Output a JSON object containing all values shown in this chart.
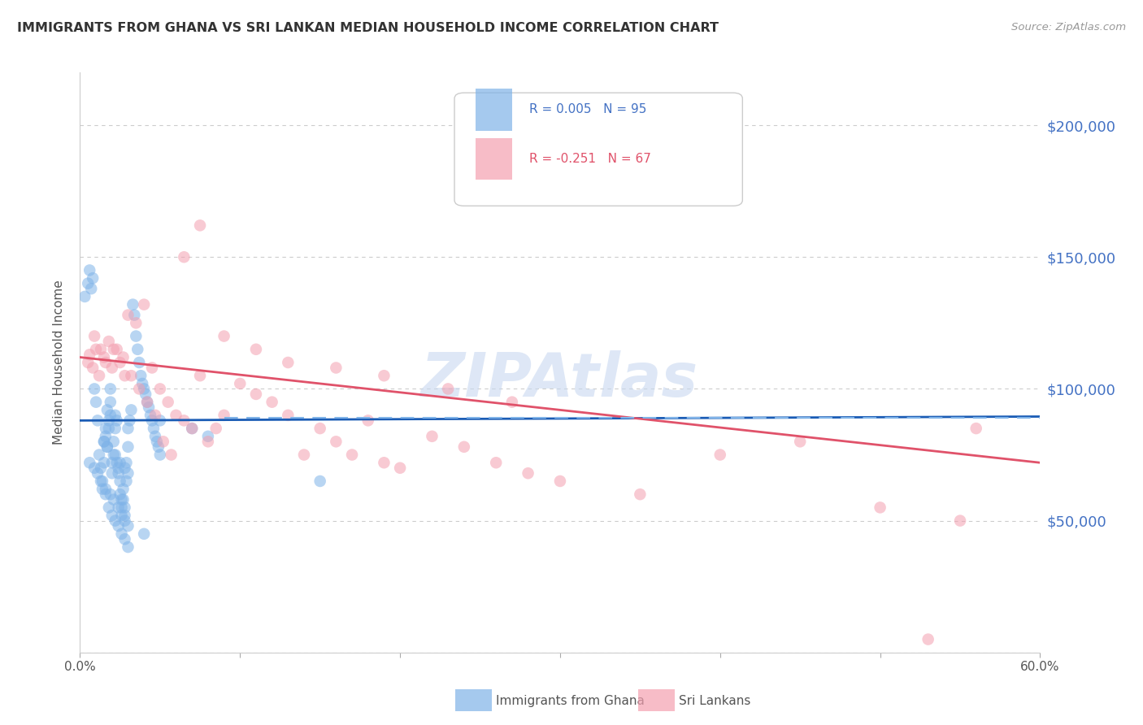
{
  "title": "IMMIGRANTS FROM GHANA VS SRI LANKAN MEDIAN HOUSEHOLD INCOME CORRELATION CHART",
  "source": "Source: ZipAtlas.com",
  "ylabel": "Median Household Income",
  "yticks": [
    0,
    50000,
    100000,
    150000,
    200000
  ],
  "ytick_labels": [
    "",
    "$50,000",
    "$100,000",
    "$150,000",
    "$200,000"
  ],
  "xlim": [
    0.0,
    0.6
  ],
  "ylim": [
    0,
    220000
  ],
  "ghana_R": 0.005,
  "ghana_N": 95,
  "srilanka_R": -0.251,
  "srilanka_N": 67,
  "ghana_color": "#7fb3e8",
  "srilanka_color": "#f4a0b0",
  "ghana_line_color": "#1a5cb5",
  "srilanka_line_color": "#e0526a",
  "ghana_dashed_color": "#7fb3e8",
  "legend_ghana_label": "Immigrants from Ghana",
  "legend_srilanka_label": "Sri Lankans",
  "watermark": "ZIPAtlas",
  "watermark_color": "#c8d8f0",
  "background_color": "#ffffff",
  "grid_color": "#cccccc",
  "title_color": "#333333",
  "ytick_label_color": "#4472c4",
  "source_color": "#999999",
  "ghana_x": [
    0.003,
    0.005,
    0.006,
    0.007,
    0.008,
    0.009,
    0.01,
    0.011,
    0.012,
    0.013,
    0.014,
    0.015,
    0.015,
    0.016,
    0.016,
    0.017,
    0.017,
    0.018,
    0.018,
    0.019,
    0.019,
    0.02,
    0.02,
    0.021,
    0.021,
    0.022,
    0.022,
    0.023,
    0.023,
    0.024,
    0.024,
    0.025,
    0.025,
    0.026,
    0.026,
    0.027,
    0.027,
    0.028,
    0.028,
    0.029,
    0.029,
    0.03,
    0.03,
    0.031,
    0.032,
    0.033,
    0.034,
    0.035,
    0.036,
    0.037,
    0.038,
    0.039,
    0.04,
    0.041,
    0.042,
    0.043,
    0.044,
    0.045,
    0.046,
    0.047,
    0.048,
    0.049,
    0.05,
    0.006,
    0.009,
    0.011,
    0.013,
    0.016,
    0.019,
    0.021,
    0.024,
    0.026,
    0.028,
    0.03,
    0.04,
    0.05,
    0.07,
    0.08,
    0.015,
    0.017,
    0.019,
    0.022,
    0.025,
    0.028,
    0.03,
    0.15,
    0.014,
    0.016,
    0.018,
    0.02,
    0.022,
    0.024,
    0.026,
    0.028,
    0.03
  ],
  "ghana_y": [
    135000,
    140000,
    145000,
    138000,
    142000,
    100000,
    95000,
    88000,
    75000,
    70000,
    65000,
    72000,
    80000,
    85000,
    82000,
    78000,
    92000,
    88000,
    85000,
    95000,
    100000,
    72000,
    68000,
    75000,
    80000,
    85000,
    90000,
    88000,
    72000,
    70000,
    68000,
    65000,
    60000,
    58000,
    55000,
    62000,
    58000,
    55000,
    52000,
    65000,
    72000,
    78000,
    85000,
    88000,
    92000,
    132000,
    128000,
    120000,
    115000,
    110000,
    105000,
    102000,
    100000,
    98000,
    95000,
    93000,
    90000,
    88000,
    85000,
    82000,
    80000,
    78000,
    75000,
    72000,
    70000,
    68000,
    65000,
    62000,
    60000,
    58000,
    55000,
    52000,
    50000,
    48000,
    45000,
    88000,
    85000,
    82000,
    80000,
    78000,
    90000,
    75000,
    72000,
    70000,
    68000,
    65000,
    62000,
    60000,
    55000,
    52000,
    50000,
    48000,
    45000,
    43000,
    40000
  ],
  "srilanka_x": [
    0.005,
    0.008,
    0.01,
    0.012,
    0.015,
    0.018,
    0.021,
    0.025,
    0.028,
    0.03,
    0.035,
    0.04,
    0.045,
    0.05,
    0.055,
    0.06,
    0.065,
    0.07,
    0.075,
    0.08,
    0.085,
    0.09,
    0.1,
    0.11,
    0.12,
    0.13,
    0.14,
    0.15,
    0.16,
    0.17,
    0.18,
    0.19,
    0.2,
    0.22,
    0.24,
    0.26,
    0.28,
    0.3,
    0.35,
    0.4,
    0.45,
    0.5,
    0.55,
    0.006,
    0.009,
    0.013,
    0.016,
    0.02,
    0.023,
    0.027,
    0.032,
    0.037,
    0.042,
    0.047,
    0.052,
    0.057,
    0.065,
    0.075,
    0.09,
    0.11,
    0.13,
    0.16,
    0.19,
    0.23,
    0.27,
    0.53,
    0.56
  ],
  "srilanka_y": [
    110000,
    108000,
    115000,
    105000,
    112000,
    118000,
    115000,
    110000,
    105000,
    128000,
    125000,
    132000,
    108000,
    100000,
    95000,
    90000,
    88000,
    85000,
    105000,
    80000,
    85000,
    90000,
    102000,
    98000,
    95000,
    90000,
    75000,
    85000,
    80000,
    75000,
    88000,
    72000,
    70000,
    82000,
    78000,
    72000,
    68000,
    65000,
    60000,
    75000,
    80000,
    55000,
    50000,
    113000,
    120000,
    115000,
    110000,
    108000,
    115000,
    112000,
    105000,
    100000,
    95000,
    90000,
    80000,
    75000,
    150000,
    162000,
    120000,
    115000,
    110000,
    108000,
    105000,
    100000,
    95000,
    5000,
    85000
  ],
  "ghana_trend_x": [
    0.0,
    0.6
  ],
  "ghana_trend_y": [
    88000,
    89500
  ],
  "srilanka_trend_x": [
    0.0,
    0.6
  ],
  "srilanka_trend_y": [
    112000,
    72000
  ],
  "dashed_line_y": 89000,
  "dashed_line_x_start": 0.09,
  "dashed_line_x_end": 0.6
}
